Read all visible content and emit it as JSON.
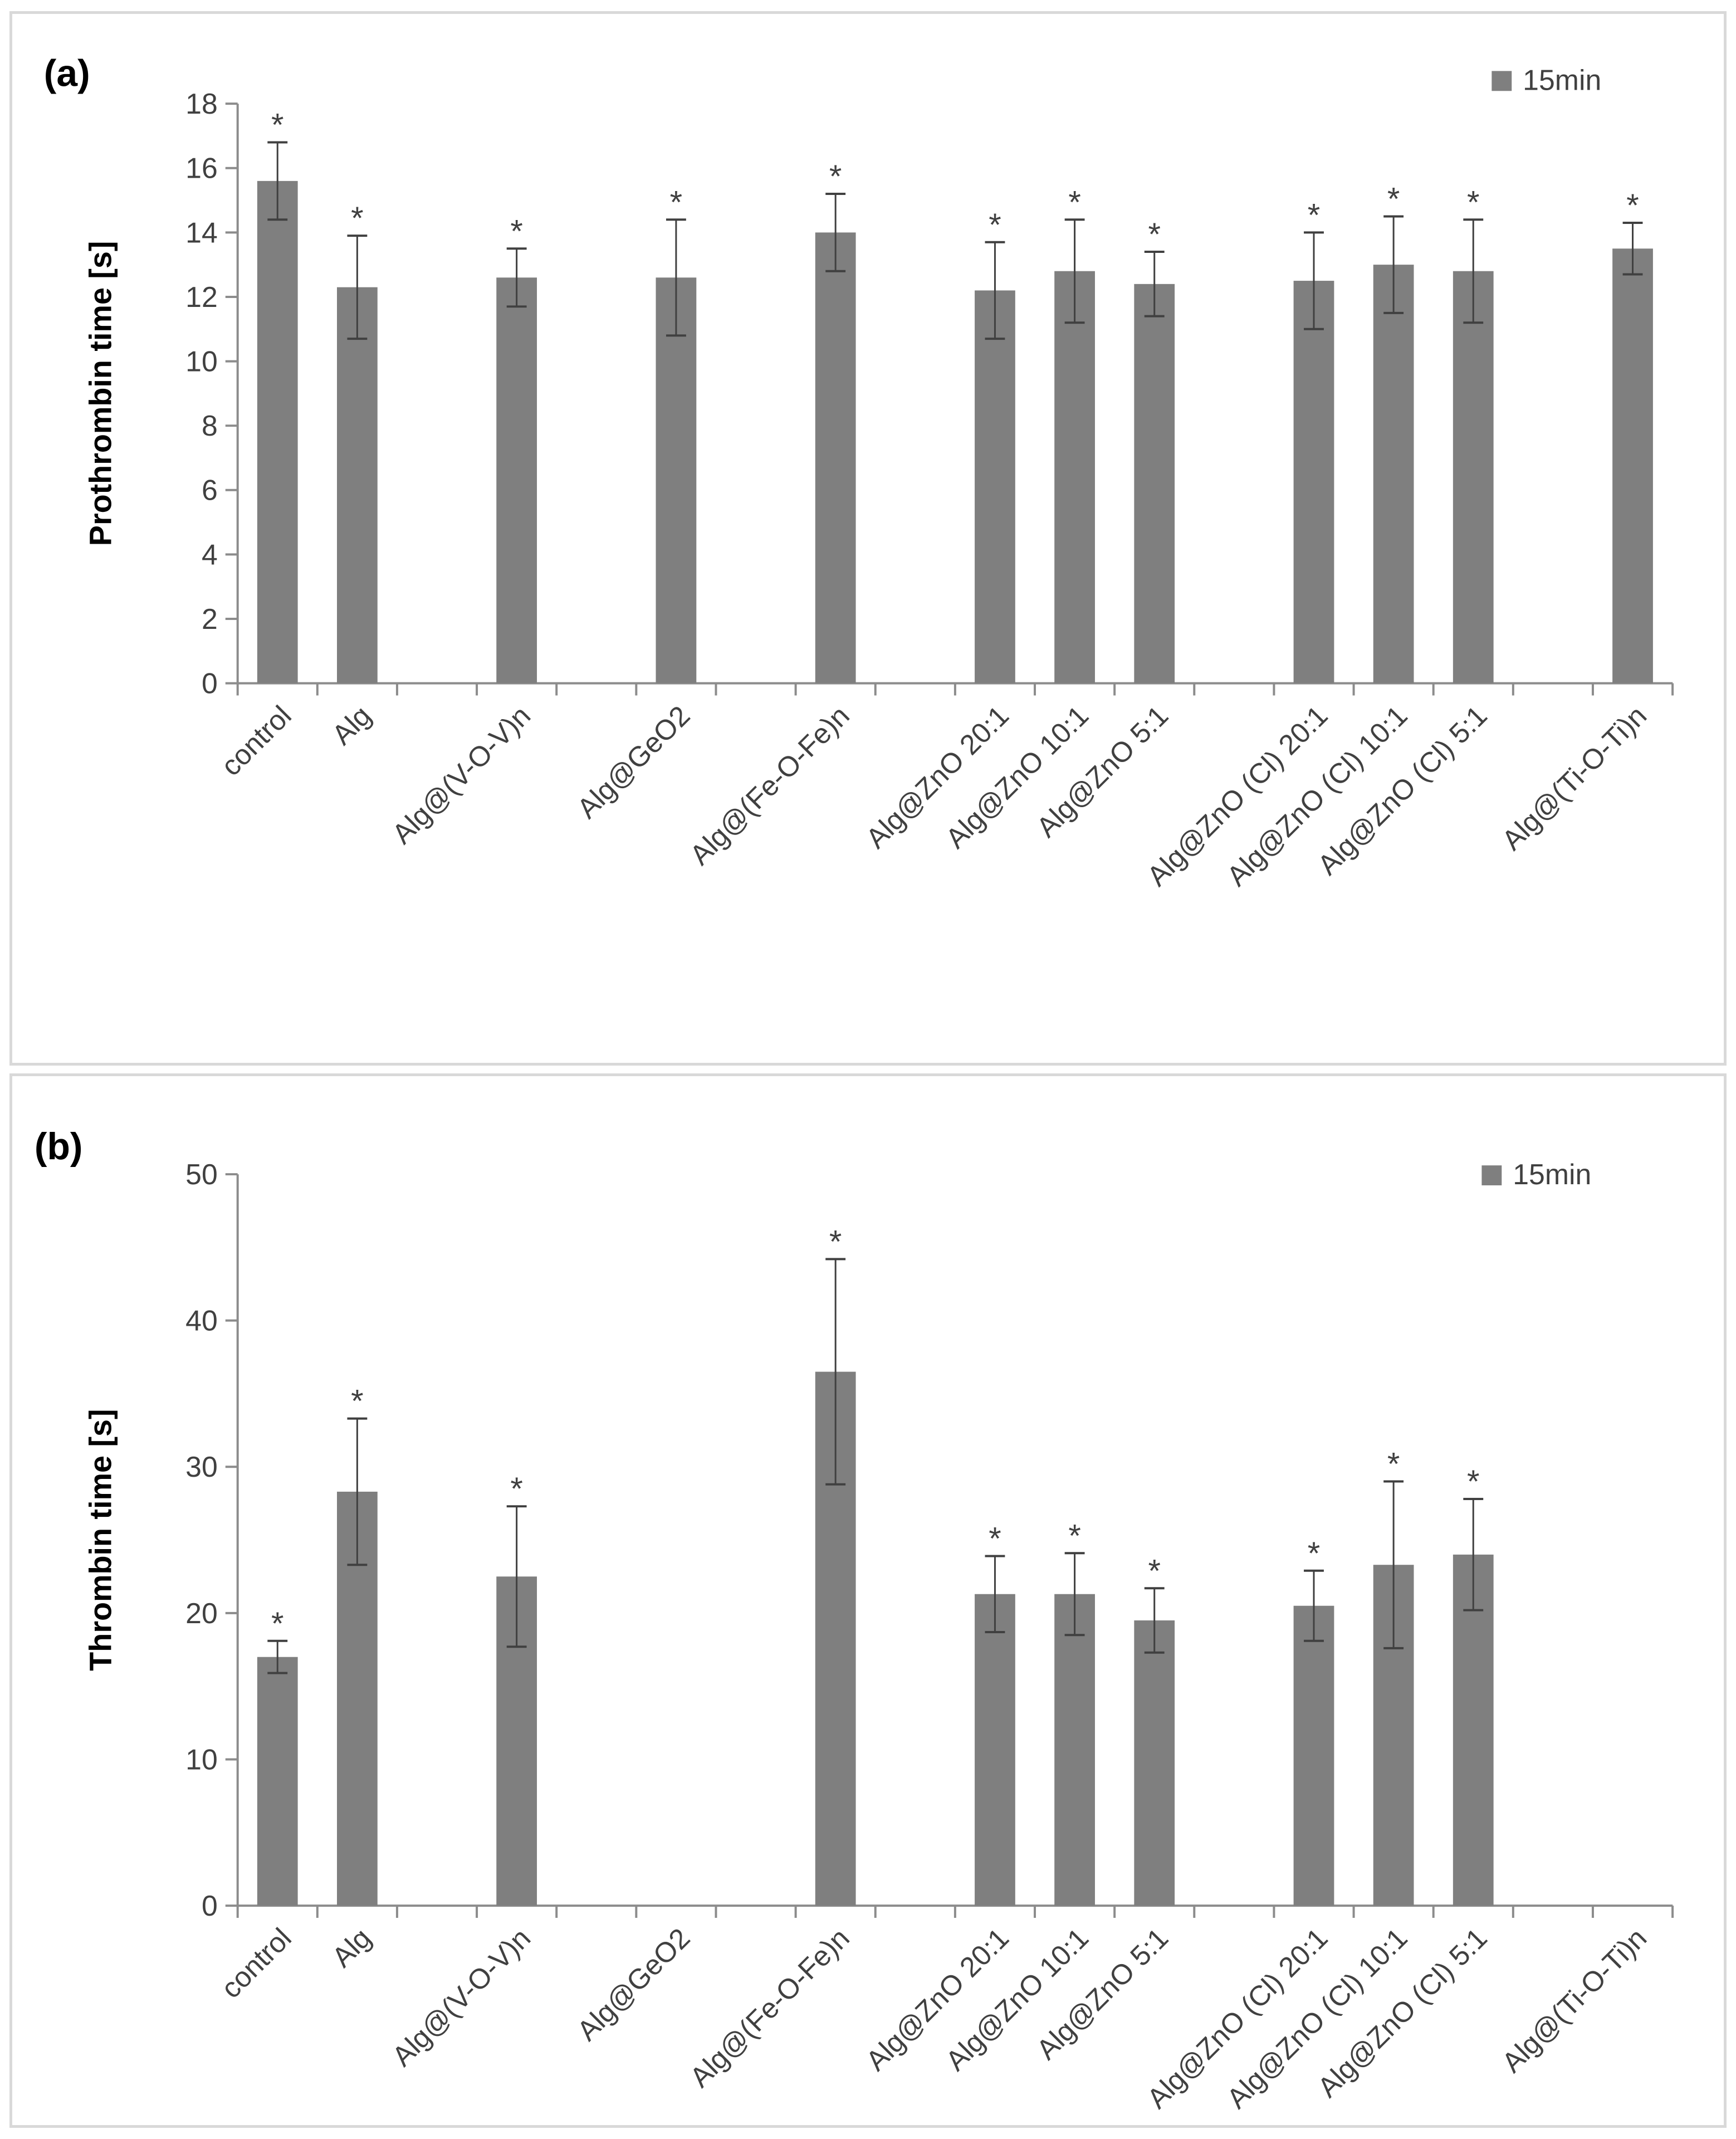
{
  "chart_data": [
    {
      "type": "bar",
      "panel_label": "(a)",
      "ylabel": "Prothrombin time [s]",
      "xlabel": "",
      "ylim": [
        0,
        18
      ],
      "yticks": [
        0,
        2,
        4,
        6,
        8,
        10,
        12,
        14,
        16,
        18
      ],
      "grid": false,
      "legend_position": "top-right",
      "categories": [
        "control",
        "Alg",
        "Alg@(V-O-V)n",
        "Alg@GeO2",
        "Alg@(Fe-O-Fe)n",
        "Alg@ZnO 20:1",
        "Alg@ZnO 10:1",
        "Alg@ZnO 5:1",
        "Alg@ZnO (Cl)  20:1",
        "Alg@ZnO (Cl) 10:1",
        "Alg@ZnO (Cl) 5:1",
        "Alg@(Ti-O-Ti)n"
      ],
      "category_slots": [
        0,
        1,
        3,
        5,
        7,
        9,
        10,
        11,
        13,
        14,
        15,
        17
      ],
      "total_slots": 18,
      "series": [
        {
          "name": "15min",
          "color": "#7f7f7f",
          "values": [
            15.6,
            12.3,
            12.6,
            12.6,
            14.0,
            12.2,
            12.8,
            12.4,
            12.5,
            13.0,
            12.8,
            13.5
          ],
          "errors": [
            1.2,
            1.6,
            0.9,
            1.8,
            1.2,
            1.5,
            1.6,
            1.0,
            1.5,
            1.5,
            1.6,
            0.8
          ],
          "significance": [
            "*",
            "*",
            "*",
            "*",
            "*",
            "*",
            "*",
            "*",
            "*",
            "*",
            "*",
            "*"
          ]
        }
      ]
    },
    {
      "type": "bar",
      "panel_label": "(b)",
      "ylabel": "Thrombin time [s]",
      "xlabel": "",
      "ylim": [
        0,
        50
      ],
      "yticks": [
        0,
        10,
        20,
        30,
        40,
        50
      ],
      "grid": false,
      "legend_position": "top-right",
      "categories": [
        "control",
        "Alg",
        "Alg@(V-O-V)n",
        "Alg@GeO2",
        "Alg@(Fe-O-Fe)n",
        "Alg@ZnO 20:1",
        "Alg@ZnO 10:1",
        "Alg@ZnO 5:1",
        "Alg@ZnO (Cl)  20:1",
        "Alg@ZnO (Cl) 10:1",
        "Alg@ZnO (Cl) 5:1",
        "Alg@(Ti-O-Ti)n"
      ],
      "category_slots": [
        0,
        1,
        3,
        5,
        7,
        9,
        10,
        11,
        13,
        14,
        15,
        17
      ],
      "total_slots": 18,
      "series": [
        {
          "name": "15min",
          "color": "#7f7f7f",
          "values": [
            17.0,
            28.3,
            22.5,
            null,
            36.5,
            21.3,
            21.3,
            19.5,
            20.5,
            23.3,
            24.0,
            null
          ],
          "errors": [
            1.1,
            5.0,
            4.8,
            null,
            7.7,
            2.6,
            2.8,
            2.2,
            2.4,
            5.7,
            3.8,
            null
          ],
          "significance": [
            "*",
            "*",
            "*",
            "",
            "*",
            "*",
            "*",
            "*",
            "*",
            "*",
            "*",
            ""
          ]
        }
      ]
    }
  ]
}
